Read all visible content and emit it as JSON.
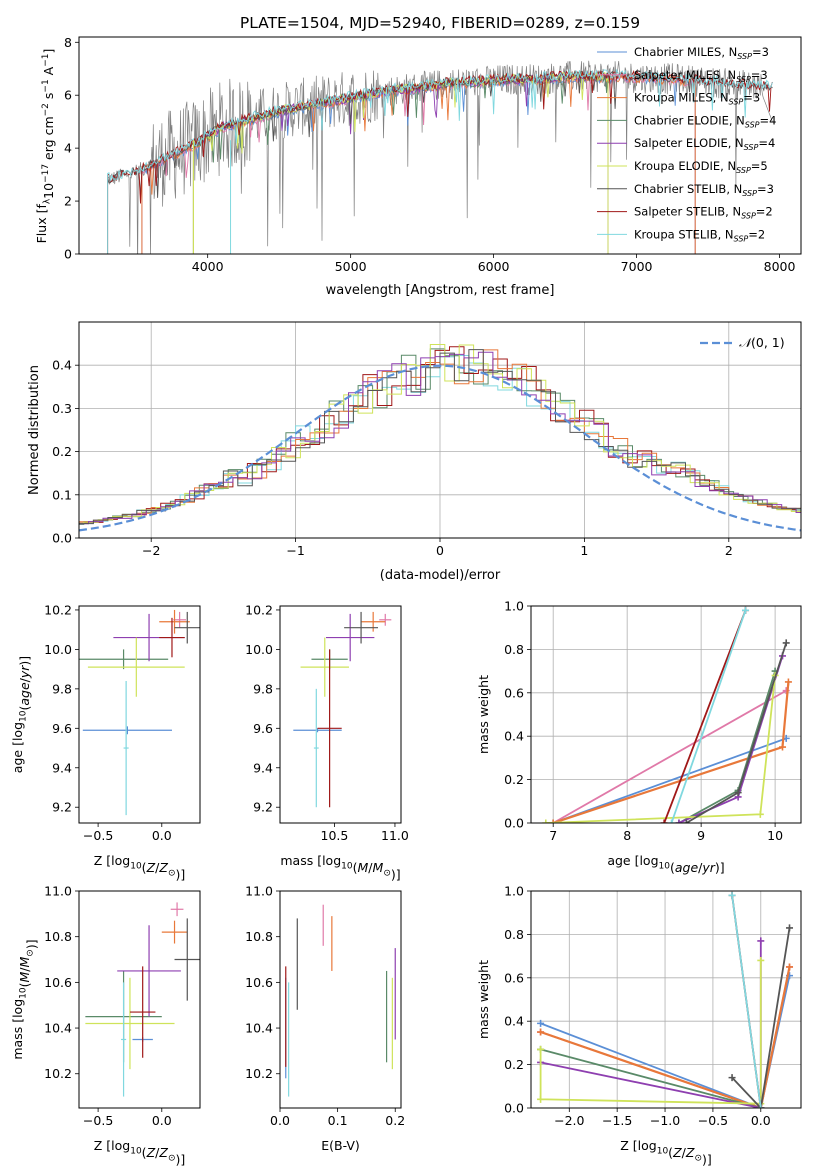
{
  "figure": {
    "title": "PLATE=1504, MJD=52940, FIBERID=0289, z=0.159"
  },
  "colors": {
    "chabrier_miles": "#5b8fd6",
    "salpeter_miles": "#e079a8",
    "kroupa_miles": "#e8783a",
    "chabrier_elodie": "#5a8a68",
    "salpeter_elodie": "#8e3fb0",
    "kroupa_elodie": "#cfe35a",
    "chabrier_stelib": "#555555",
    "salpeter_stelib": "#a01818",
    "kroupa_stelib": "#80d8df",
    "data": "#808080",
    "gauss": "#5b8fd6"
  },
  "chart_data": [
    {
      "type": "line",
      "id": "spectrum",
      "xlabel": "wavelength [Angstrom, rest frame]",
      "ylabel": "Flux [f_λ 10^-17 erg cm^-2 s^-1 A^-1]",
      "xlim": [
        3100,
        8150
      ],
      "ylim": [
        0,
        8.2
      ],
      "xticks": [
        4000,
        5000,
        6000,
        7000,
        8000
      ],
      "yticks": [
        0,
        2,
        4,
        6,
        8
      ],
      "legend_loc": "upper right",
      "legend": [
        "Chabrier MILES, N_SSP=3",
        "Salpeter MILES, N_SSP=3",
        "Kroupa MILES, N_SSP=3",
        "Chabrier ELODIE, N_SSP=4",
        "Salpeter ELODIE, N_SSP=4",
        "Kroupa ELODIE, N_SSP=5",
        "Chabrier STELIB, N_SSP=3",
        "Salpeter STELIB, N_SSP=2",
        "Kroupa STELIB, N_SSP=2"
      ],
      "model_x": [
        3300,
        3500,
        3700,
        3900,
        4100,
        4300,
        4500,
        4700,
        4900,
        5100,
        5300,
        5500,
        5700,
        5900,
        6100,
        6300,
        6500,
        6700,
        6900,
        7100,
        7300,
        7500,
        7700,
        7900
      ],
      "model_y": [
        2.8,
        3.1,
        3.6,
        4.1,
        4.8,
        5.1,
        5.4,
        5.6,
        5.8,
        6.0,
        6.2,
        6.3,
        6.45,
        6.5,
        6.6,
        6.6,
        6.7,
        6.7,
        6.7,
        6.65,
        6.6,
        6.5,
        6.4,
        6.3
      ]
    },
    {
      "type": "step",
      "id": "residuals",
      "xlabel": "(data-model)/error",
      "ylabel": "Normed distribution",
      "xlim": [
        -2.5,
        2.5
      ],
      "ylim": [
        0,
        0.5
      ],
      "xticks": [
        -2,
        -1,
        0,
        1,
        2
      ],
      "yticks": [
        0.0,
        0.1,
        0.2,
        0.3,
        0.4
      ],
      "legend": [
        "𝒩(0,1)"
      ],
      "gauss_mu": 0,
      "gauss_sigma": 1
    },
    {
      "type": "errorbar",
      "id": "age_vs_Z",
      "xlabel": "Z [log10(Z/Z⊙)]",
      "ylabel": "age  [log10(age/yr)]",
      "xlim": [
        -0.65,
        0.3
      ],
      "ylim": [
        9.12,
        10.22
      ],
      "xticks": [
        -0.5,
        0.0
      ],
      "yticks": [
        9.2,
        9.4,
        9.6,
        9.8,
        10.0,
        10.2
      ],
      "points": [
        {
          "c": "chabrier_miles",
          "x": -0.27,
          "xerr": 0.35,
          "y": 9.59,
          "yerr": 0.02
        },
        {
          "c": "salpeter_miles",
          "x": 0.14,
          "xerr": 0.05,
          "y": 10.15,
          "yerr": 0.04
        },
        {
          "c": "kroupa_miles",
          "x": 0.1,
          "xerr": 0.12,
          "y": 10.14,
          "yerr": 0.06
        },
        {
          "c": "chabrier_elodie",
          "x": -0.3,
          "xerr": 0.35,
          "y": 9.95,
          "yerr": 0.05
        },
        {
          "c": "salpeter_elodie",
          "x": -0.1,
          "xerr": 0.28,
          "y": 10.06,
          "yerr": 0.12
        },
        {
          "c": "kroupa_elodie",
          "x": -0.2,
          "xerr": 0.38,
          "y": 9.91,
          "yerr": 0.15
        },
        {
          "c": "chabrier_stelib",
          "x": 0.2,
          "xerr": 0.1,
          "y": 10.11,
          "yerr": 0.08
        },
        {
          "c": "salpeter_stelib",
          "x": 0.08,
          "xerr": 0.1,
          "y": 10.06,
          "yerr": 0.1
        },
        {
          "c": "kroupa_stelib",
          "x": -0.28,
          "xerr": 0.02,
          "y": 9.5,
          "yerr": 0.34
        }
      ]
    },
    {
      "type": "errorbar",
      "id": "age_vs_mass",
      "xlabel": "mass [log10(M/M⊙)]",
      "ylabel": "",
      "xlim": [
        10.05,
        11.05
      ],
      "ylim": [
        9.12,
        10.22
      ],
      "xticks": [
        10.5,
        11.0
      ],
      "yticks": [
        9.2,
        9.4,
        9.6,
        9.8,
        10.0,
        10.2
      ],
      "points": [
        {
          "c": "chabrier_miles",
          "x": 10.36,
          "xerr": 0.2,
          "y": 9.59,
          "yerr": 0.01
        },
        {
          "c": "salpeter_miles",
          "x": 10.92,
          "xerr": 0.05,
          "y": 10.15,
          "yerr": 0.03
        },
        {
          "c": "kroupa_miles",
          "x": 10.82,
          "xerr": 0.1,
          "y": 10.14,
          "yerr": 0.05
        },
        {
          "c": "chabrier_elodie",
          "x": 10.46,
          "xerr": 0.15,
          "y": 9.95,
          "yerr": 0.05
        },
        {
          "c": "salpeter_elodie",
          "x": 10.63,
          "xerr": 0.2,
          "y": 10.06,
          "yerr": 0.12
        },
        {
          "c": "kroupa_elodie",
          "x": 10.42,
          "xerr": 0.2,
          "y": 9.91,
          "yerr": 0.15
        },
        {
          "c": "chabrier_stelib",
          "x": 10.72,
          "xerr": 0.14,
          "y": 10.11,
          "yerr": 0.08
        },
        {
          "c": "salpeter_stelib",
          "x": 10.46,
          "xerr": 0.1,
          "y": 9.6,
          "yerr": 0.4
        },
        {
          "c": "kroupa_stelib",
          "x": 10.35,
          "xerr": 0.02,
          "y": 9.5,
          "yerr": 0.3
        }
      ]
    },
    {
      "type": "line",
      "id": "weight_vs_age",
      "xlabel": "age  [log10(age/yr)]",
      "ylabel": "mass weight",
      "xlim": [
        6.7,
        10.35
      ],
      "ylim": [
        0,
        1.0
      ],
      "xticks": [
        7,
        8,
        9,
        10
      ],
      "yticks": [
        0.0,
        0.2,
        0.4,
        0.6,
        0.8,
        1.0
      ],
      "series": [
        {
          "c": "chabrier_miles",
          "x": [
            7.0,
            10.15
          ],
          "y": [
            0.0,
            0.39
          ]
        },
        {
          "c": "salpeter_miles",
          "x": [
            7.0,
            10.15
          ],
          "y": [
            0.0,
            0.61
          ]
        },
        {
          "c": "kroupa_miles",
          "x": [
            7.0,
            10.1,
            10.18
          ],
          "y": [
            0.0,
            0.35,
            0.65
          ]
        },
        {
          "c": "chabrier_elodie",
          "x": [
            8.7,
            9.5,
            10.0
          ],
          "y": [
            0.0,
            0.15,
            0.7
          ]
        },
        {
          "c": "salpeter_elodie",
          "x": [
            8.7,
            9.5,
            10.1
          ],
          "y": [
            0.0,
            0.12,
            0.77
          ]
        },
        {
          "c": "kroupa_elodie",
          "x": [
            6.9,
            9.8,
            10.0
          ],
          "y": [
            0.0,
            0.04,
            0.68
          ]
        },
        {
          "c": "chabrier_stelib",
          "x": [
            8.8,
            9.5,
            10.15
          ],
          "y": [
            0.0,
            0.14,
            0.83
          ]
        },
        {
          "c": "salpeter_stelib",
          "x": [
            8.5,
            9.6
          ],
          "y": [
            0.0,
            0.98
          ]
        },
        {
          "c": "kroupa_stelib",
          "x": [
            8.6,
            9.6
          ],
          "y": [
            0.0,
            0.98
          ]
        }
      ]
    },
    {
      "type": "errorbar",
      "id": "mass_vs_Z",
      "xlabel": "Z [log10(Z/Z⊙)]",
      "ylabel": "mass [log10(M/M⊙)]",
      "xlim": [
        -0.65,
        0.3
      ],
      "ylim": [
        10.05,
        11.0
      ],
      "xticks": [
        -0.5,
        0.0
      ],
      "yticks": [
        10.2,
        10.4,
        10.6,
        10.8,
        11.0
      ],
      "points": [
        {
          "c": "chabrier_miles",
          "x": -0.15,
          "xerr": 0.08,
          "y": 10.35,
          "yerr": 0.01
        },
        {
          "c": "salpeter_miles",
          "x": 0.12,
          "xerr": 0.05,
          "y": 10.92,
          "yerr": 0.03
        },
        {
          "c": "kroupa_miles",
          "x": 0.1,
          "xerr": 0.1,
          "y": 10.82,
          "yerr": 0.05
        },
        {
          "c": "chabrier_elodie",
          "x": -0.3,
          "xerr": 0.3,
          "y": 10.45,
          "yerr": 0.2
        },
        {
          "c": "salpeter_elodie",
          "x": -0.1,
          "xerr": 0.25,
          "y": 10.65,
          "yerr": 0.2
        },
        {
          "c": "kroupa_elodie",
          "x": -0.25,
          "xerr": 0.35,
          "y": 10.42,
          "yerr": 0.2
        },
        {
          "c": "chabrier_stelib",
          "x": 0.2,
          "xerr": 0.1,
          "y": 10.7,
          "yerr": 0.18
        },
        {
          "c": "salpeter_stelib",
          "x": -0.15,
          "xerr": 0.1,
          "y": 10.47,
          "yerr": 0.2
        },
        {
          "c": "kroupa_stelib",
          "x": -0.3,
          "xerr": 0.02,
          "y": 10.35,
          "yerr": 0.25
        }
      ]
    },
    {
      "type": "errorbar",
      "id": "mass_vs_ebv",
      "xlabel": "E(B-V)",
      "ylabel": "",
      "xlim": [
        0.0,
        0.21
      ],
      "ylim": [
        10.05,
        11.0
      ],
      "xticks": [
        0.0,
        0.1,
        0.2
      ],
      "yticks": [
        10.2,
        10.4,
        10.6,
        10.8,
        11.0
      ],
      "points": [
        {
          "c": "chabrier_miles",
          "x": 0.01,
          "xerr": 0.0,
          "y": 10.4,
          "yerr": 0.22
        },
        {
          "c": "salpeter_miles",
          "x": 0.075,
          "xerr": 0.0,
          "y": 10.85,
          "yerr": 0.09
        },
        {
          "c": "kroupa_miles",
          "x": 0.09,
          "xerr": 0.0,
          "y": 10.77,
          "yerr": 0.12
        },
        {
          "c": "chabrier_elodie",
          "x": 0.185,
          "xerr": 0.0,
          "y": 10.45,
          "yerr": 0.2
        },
        {
          "c": "salpeter_elodie",
          "x": 0.2,
          "xerr": 0.0,
          "y": 10.55,
          "yerr": 0.2
        },
        {
          "c": "kroupa_elodie",
          "x": 0.195,
          "xerr": 0.0,
          "y": 10.42,
          "yerr": 0.2
        },
        {
          "c": "chabrier_stelib",
          "x": 0.03,
          "xerr": 0.0,
          "y": 10.68,
          "yerr": 0.2
        },
        {
          "c": "salpeter_stelib",
          "x": 0.01,
          "xerr": 0.0,
          "y": 10.45,
          "yerr": 0.22
        },
        {
          "c": "kroupa_stelib",
          "x": 0.015,
          "xerr": 0.0,
          "y": 10.35,
          "yerr": 0.25
        }
      ]
    },
    {
      "type": "line",
      "id": "weight_vs_Z",
      "xlabel": "Z [log10(Z/Z⊙)]",
      "ylabel": "mass weight",
      "xlim": [
        -2.4,
        0.42
      ],
      "ylim": [
        0,
        1.0
      ],
      "xticks": [
        -2.0,
        -1.5,
        -1.0,
        -0.5,
        0.0
      ],
      "yticks": [
        0.0,
        0.2,
        0.4,
        0.6,
        0.8,
        1.0
      ],
      "series": [
        {
          "c": "chabrier_miles",
          "x": [
            -2.3,
            0.0,
            0.3
          ],
          "y": [
            0.39,
            0.0,
            0.61
          ]
        },
        {
          "c": "salpeter_miles",
          "x": [
            -2.3,
            0.0,
            0.3
          ],
          "y": [
            0.35,
            0.0,
            0.65
          ]
        },
        {
          "c": "kroupa_miles",
          "x": [
            -2.3,
            0.0,
            0.3
          ],
          "y": [
            0.35,
            0.0,
            0.65
          ]
        },
        {
          "c": "chabrier_elodie",
          "x": [
            -2.3,
            0.0
          ],
          "y": [
            0.27,
            0.0
          ]
        },
        {
          "c": "salpeter_elodie",
          "x": [
            -2.3,
            0.0,
            0.0
          ],
          "y": [
            0.21,
            0.0,
            0.77
          ]
        },
        {
          "c": "kroupa_elodie",
          "x": [
            -2.3,
            -2.3,
            0.0,
            0.0
          ],
          "y": [
            0.27,
            0.04,
            0.02,
            0.68
          ]
        },
        {
          "c": "chabrier_stelib",
          "x": [
            -0.3,
            0.0,
            0.3
          ],
          "y": [
            0.14,
            0.0,
            0.83
          ]
        },
        {
          "c": "salpeter_stelib",
          "x": [
            -0.3,
            0.0
          ],
          "y": [
            0.98,
            0.0
          ]
        },
        {
          "c": "kroupa_stelib",
          "x": [
            -0.3,
            0.0
          ],
          "y": [
            0.98,
            0.0
          ]
        }
      ]
    }
  ]
}
